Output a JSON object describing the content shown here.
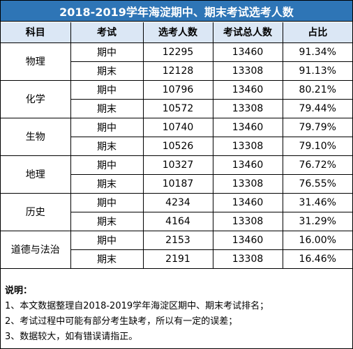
{
  "title": "2018-2019学年海淀期中、期末考试选考人数",
  "headers": [
    "科目",
    "考试",
    "选考人数",
    "考试总人数",
    "占比"
  ],
  "subjects": [
    {
      "name": "物理",
      "rows": [
        {
          "exam": "期中",
          "selected": "12295",
          "total": "13460",
          "ratio": "91.34%"
        },
        {
          "exam": "期末",
          "selected": "12128",
          "total": "13308",
          "ratio": "91.13%"
        }
      ]
    },
    {
      "name": "化学",
      "rows": [
        {
          "exam": "期中",
          "selected": "10796",
          "total": "13460",
          "ratio": "80.21%"
        },
        {
          "exam": "期末",
          "selected": "10572",
          "total": "13308",
          "ratio": "79.44%"
        }
      ]
    },
    {
      "name": "生物",
      "rows": [
        {
          "exam": "期中",
          "selected": "10740",
          "total": "13460",
          "ratio": "79.79%"
        },
        {
          "exam": "期末",
          "selected": "10526",
          "total": "13308",
          "ratio": "79.10%"
        }
      ]
    },
    {
      "name": "地理",
      "rows": [
        {
          "exam": "期中",
          "selected": "10327",
          "total": "13460",
          "ratio": "76.72%"
        },
        {
          "exam": "期末",
          "selected": "10187",
          "total": "13308",
          "ratio": "76.55%"
        }
      ]
    },
    {
      "name": "历史",
      "rows": [
        {
          "exam": "期中",
          "selected": "4234",
          "total": "13460",
          "ratio": "31.46%"
        },
        {
          "exam": "期末",
          "selected": "4164",
          "total": "13308",
          "ratio": "31.29%"
        }
      ]
    },
    {
      "name": "道德与法治",
      "rows": [
        {
          "exam": "期中",
          "selected": "2153",
          "total": "13460",
          "ratio": "16.00%"
        },
        {
          "exam": "期末",
          "selected": "2191",
          "total": "13308",
          "ratio": "16.46%"
        }
      ]
    }
  ],
  "notes": {
    "label": "说明：",
    "lines": [
      "1、本文数据整理自2018-2019学年海淀区期中、期末考试排名；",
      "2、考试过程中可能有部分考生缺考，所以有一定的误差；",
      "3、数据较大，如有错误请指正。"
    ]
  },
  "colors": {
    "title_bg": "#2e75b6",
    "header_bg": "#dbe7f5",
    "border": "#000000"
  }
}
